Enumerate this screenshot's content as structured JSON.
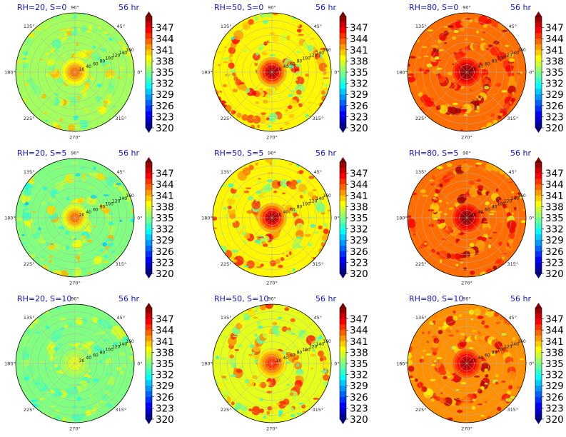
{
  "chart_data": {
    "type": "heatmap",
    "projection": "polar",
    "common": {
      "time_label": "56 hr",
      "angle_labels": [
        "90°",
        "45°",
        "0°",
        "315°",
        "270°",
        "225°",
        "180°",
        "135°"
      ],
      "radial_labels": [
        "20",
        "40",
        "60",
        "80",
        "100",
        "120",
        "140",
        "160"
      ],
      "rlim": [
        0,
        160
      ],
      "colorbar_ticks": [
        "347",
        "344",
        "341",
        "338",
        "335",
        "332",
        "329",
        "326",
        "323",
        "320"
      ],
      "colorbar_range": [
        320,
        350
      ],
      "colormap": "jet",
      "grid": true
    },
    "panels": [
      {
        "title": "RH=20, S=0",
        "level": 336,
        "core": 343,
        "spread": 4
      },
      {
        "title": "RH=50, S=0",
        "level": 339,
        "core": 349,
        "spread": 6
      },
      {
        "title": "RH=80, S=0",
        "level": 343,
        "core": 350,
        "spread": 5
      },
      {
        "title": "RH=20, S=5",
        "level": 335,
        "core": 343,
        "spread": 5
      },
      {
        "title": "RH=50, S=5",
        "level": 339,
        "core": 349,
        "spread": 6
      },
      {
        "title": "RH=80, S=5",
        "level": 343,
        "core": 350,
        "spread": 5
      },
      {
        "title": "RH=20, S=10",
        "level": 335,
        "core": 338,
        "spread": 3
      },
      {
        "title": "RH=50, S=10",
        "level": 338,
        "core": 345,
        "spread": 6
      },
      {
        "title": "RH=80, S=10",
        "level": 342,
        "core": 349,
        "spread": 5
      }
    ]
  }
}
